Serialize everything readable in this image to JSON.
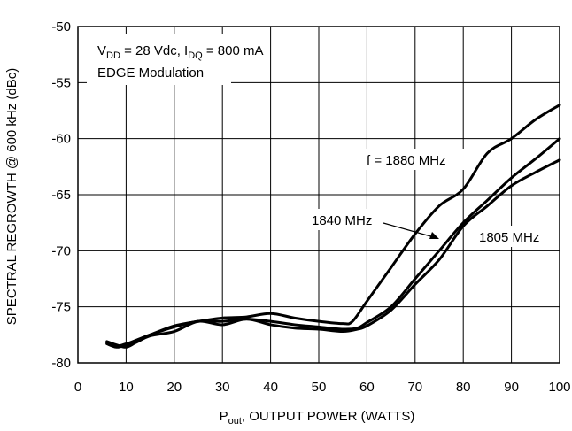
{
  "chart_data": {
    "type": "line",
    "xlabel_main": "P",
    "xlabel_sub": "out",
    "xlabel_rest": ", OUTPUT POWER (WATTS)",
    "ylabel": "SPECTRAL REGROWTH @ 600 kHz (dBc)",
    "xlim": [
      0,
      100
    ],
    "ylim": [
      -80,
      -50
    ],
    "x_ticks": [
      "0",
      "10",
      "20",
      "30",
      "40",
      "50",
      "60",
      "70",
      "80",
      "90",
      "100"
    ],
    "y_ticks": [
      "-50",
      "-55",
      "-60",
      "-65",
      "-70",
      "-75",
      "-80"
    ],
    "grid": true,
    "conditions": {
      "vdd_main": "V",
      "vdd_sub": "DD",
      "vdd_rest": " = 28 Vdc, I",
      "idq_sub": "DQ",
      "idq_rest": " = 800 mA",
      "line2": "EDGE Modulation"
    },
    "series": [
      {
        "name": "f = 1880 MHz",
        "x": [
          6,
          8,
          10,
          12,
          15,
          20,
          25,
          30,
          35,
          40,
          45,
          50,
          55,
          57,
          60,
          65,
          70,
          75,
          80,
          85,
          90,
          95,
          100
        ],
        "y": [
          -78.2,
          -78.5,
          -78.3,
          -78.0,
          -77.5,
          -76.7,
          -76.3,
          -76.0,
          -75.9,
          -75.6,
          -76.0,
          -76.3,
          -76.5,
          -76.3,
          -74.5,
          -71.5,
          -68.5,
          -66.0,
          -64.5,
          -61.3,
          -60.0,
          -58.3,
          -57.0
        ]
      },
      {
        "name": "1840 MHz",
        "x": [
          6,
          8,
          10,
          12,
          15,
          20,
          25,
          30,
          35,
          40,
          45,
          50,
          55,
          58,
          60,
          65,
          70,
          75,
          80,
          85,
          90,
          95,
          100
        ],
        "y": [
          -78.3,
          -78.6,
          -78.4,
          -78.0,
          -77.5,
          -76.8,
          -76.3,
          -76.3,
          -76.1,
          -76.3,
          -76.6,
          -76.8,
          -77.0,
          -76.9,
          -76.4,
          -75.0,
          -72.5,
          -70.0,
          -67.5,
          -65.5,
          -63.5,
          -61.8,
          -60.0
        ]
      },
      {
        "name": "1805 MHz",
        "x": [
          6,
          8,
          10,
          12,
          15,
          20,
          25,
          30,
          35,
          40,
          45,
          50,
          55,
          58,
          60,
          65,
          70,
          75,
          80,
          85,
          90,
          95,
          100
        ],
        "y": [
          -78.1,
          -78.4,
          -78.6,
          -78.2,
          -77.6,
          -77.2,
          -76.3,
          -76.6,
          -76.1,
          -76.6,
          -76.9,
          -77.0,
          -77.2,
          -77.0,
          -76.7,
          -75.3,
          -73.0,
          -70.8,
          -67.8,
          -66.0,
          -64.2,
          -63.0,
          -61.9
        ]
      }
    ]
  }
}
